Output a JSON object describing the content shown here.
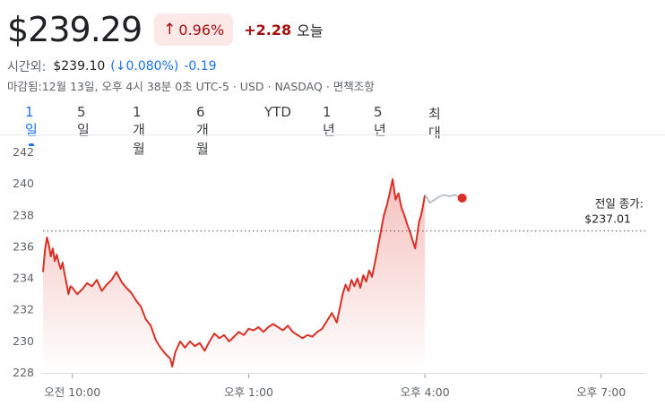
{
  "header": {
    "price": "$239.29",
    "change_pct": "0.96%",
    "change_abs": "+2.28",
    "period": "오늘",
    "arrow_icon": "arrow-up-icon"
  },
  "after_hours": {
    "label": "시간외:",
    "price": "$239.10",
    "pct": "(↓0.080%)",
    "abs": "-0.19"
  },
  "meta": "마감됨:12월 13일, 오후 4시 38분 0초 UTC-5 · USD · NASDAQ · 면책조항",
  "tabs": [
    "1일",
    "5일",
    "1개월",
    "6개월",
    "YTD",
    "1년",
    "5년",
    "최대"
  ],
  "active_tab": 0,
  "prev_close": {
    "line1": "전일 종가:",
    "line2": "$237.01"
  },
  "colors": {
    "up_red": "#d93025",
    "badge_bg": "#fce8e6",
    "after_hours_gray": "#bdc1c6",
    "accent_blue": "#1a73e8"
  },
  "chart_data": {
    "type": "line",
    "ylim": [
      228,
      242
    ],
    "yticks": [
      228,
      230,
      232,
      234,
      236,
      238,
      240,
      242
    ],
    "xlim": [
      "09:30",
      "19:45"
    ],
    "xticks": [
      {
        "time": "10:00",
        "label": "오전 10:00"
      },
      {
        "time": "13:00",
        "label": "오후 1:00"
      },
      {
        "time": "16:00",
        "label": "오후 4:00"
      },
      {
        "time": "19:00",
        "label": "오후 7:00"
      }
    ],
    "previous_close": 237.01,
    "grid": false,
    "series": [
      {
        "session": "regular",
        "color": "#d93025",
        "points": [
          [
            "09:30",
            234.4
          ],
          [
            "09:32",
            235.8
          ],
          [
            "09:34",
            236.6
          ],
          [
            "09:36",
            236.1
          ],
          [
            "09:38",
            235.4
          ],
          [
            "09:40",
            235.9
          ],
          [
            "09:42",
            235.1
          ],
          [
            "09:44",
            235.5
          ],
          [
            "09:46",
            235.0
          ],
          [
            "09:48",
            234.6
          ],
          [
            "09:50",
            235.0
          ],
          [
            "09:52",
            234.3
          ],
          [
            "09:54",
            233.7
          ],
          [
            "09:56",
            233.0
          ],
          [
            "09:58",
            233.5
          ],
          [
            "10:00",
            233.4
          ],
          [
            "10:05",
            233.0
          ],
          [
            "10:10",
            233.3
          ],
          [
            "10:15",
            233.7
          ],
          [
            "10:20",
            233.5
          ],
          [
            "10:25",
            233.9
          ],
          [
            "10:30",
            233.2
          ],
          [
            "10:35",
            233.6
          ],
          [
            "10:40",
            233.9
          ],
          [
            "10:45",
            234.4
          ],
          [
            "10:50",
            233.8
          ],
          [
            "10:55",
            233.4
          ],
          [
            "11:00",
            233.1
          ],
          [
            "11:05",
            232.6
          ],
          [
            "11:10",
            232.2
          ],
          [
            "11:15",
            231.4
          ],
          [
            "11:20",
            231.0
          ],
          [
            "11:25",
            230.1
          ],
          [
            "11:30",
            229.6
          ],
          [
            "11:35",
            229.2
          ],
          [
            "11:40",
            228.9
          ],
          [
            "11:42",
            228.4
          ],
          [
            "11:45",
            229.3
          ],
          [
            "11:50",
            230.0
          ],
          [
            "11:55",
            229.6
          ],
          [
            "12:00",
            230.0
          ],
          [
            "12:05",
            229.7
          ],
          [
            "12:10",
            229.9
          ],
          [
            "12:15",
            229.4
          ],
          [
            "12:20",
            230.0
          ],
          [
            "12:25",
            230.5
          ],
          [
            "12:30",
            230.2
          ],
          [
            "12:35",
            230.4
          ],
          [
            "12:40",
            230.0
          ],
          [
            "12:45",
            230.3
          ],
          [
            "12:50",
            230.6
          ],
          [
            "12:55",
            230.4
          ],
          [
            "13:00",
            230.8
          ],
          [
            "13:05",
            230.7
          ],
          [
            "13:10",
            230.9
          ],
          [
            "13:15",
            230.6
          ],
          [
            "13:20",
            230.9
          ],
          [
            "13:25",
            231.1
          ],
          [
            "13:30",
            230.9
          ],
          [
            "13:35",
            230.7
          ],
          [
            "13:40",
            231.0
          ],
          [
            "13:45",
            230.6
          ],
          [
            "13:50",
            230.4
          ],
          [
            "13:55",
            230.2
          ],
          [
            "14:00",
            230.4
          ],
          [
            "14:05",
            230.3
          ],
          [
            "14:10",
            230.6
          ],
          [
            "14:15",
            230.8
          ],
          [
            "14:20",
            231.3
          ],
          [
            "14:25",
            231.8
          ],
          [
            "14:30",
            231.2
          ],
          [
            "14:33",
            232.1
          ],
          [
            "14:36",
            233.0
          ],
          [
            "14:39",
            233.6
          ],
          [
            "14:42",
            233.2
          ],
          [
            "14:45",
            233.9
          ],
          [
            "14:48",
            233.5
          ],
          [
            "14:51",
            234.0
          ],
          [
            "14:54",
            233.4
          ],
          [
            "14:57",
            234.2
          ],
          [
            "15:00",
            233.8
          ],
          [
            "15:03",
            234.5
          ],
          [
            "15:06",
            234.1
          ],
          [
            "15:09",
            235.0
          ],
          [
            "15:12",
            236.0
          ],
          [
            "15:15",
            237.0
          ],
          [
            "15:18",
            238.0
          ],
          [
            "15:21",
            238.6
          ],
          [
            "15:24",
            239.4
          ],
          [
            "15:27",
            240.3
          ],
          [
            "15:30",
            239.0
          ],
          [
            "15:33",
            239.4
          ],
          [
            "15:36",
            238.5
          ],
          [
            "15:39",
            238.0
          ],
          [
            "15:42",
            237.4
          ],
          [
            "15:45",
            236.9
          ],
          [
            "15:48",
            236.3
          ],
          [
            "15:50",
            235.9
          ],
          [
            "15:52",
            236.7
          ],
          [
            "15:54",
            237.6
          ],
          [
            "15:56",
            238.0
          ],
          [
            "15:58",
            238.6
          ],
          [
            "16:00",
            239.3
          ]
        ]
      },
      {
        "session": "after_hours",
        "color": "#bdc1c6",
        "points": [
          [
            "16:00",
            239.3
          ],
          [
            "16:05",
            238.8
          ],
          [
            "16:10",
            239.0
          ],
          [
            "16:15",
            239.2
          ],
          [
            "16:20",
            239.3
          ],
          [
            "16:25",
            239.2
          ],
          [
            "16:30",
            239.3
          ],
          [
            "16:38",
            239.1
          ]
        ]
      }
    ]
  }
}
